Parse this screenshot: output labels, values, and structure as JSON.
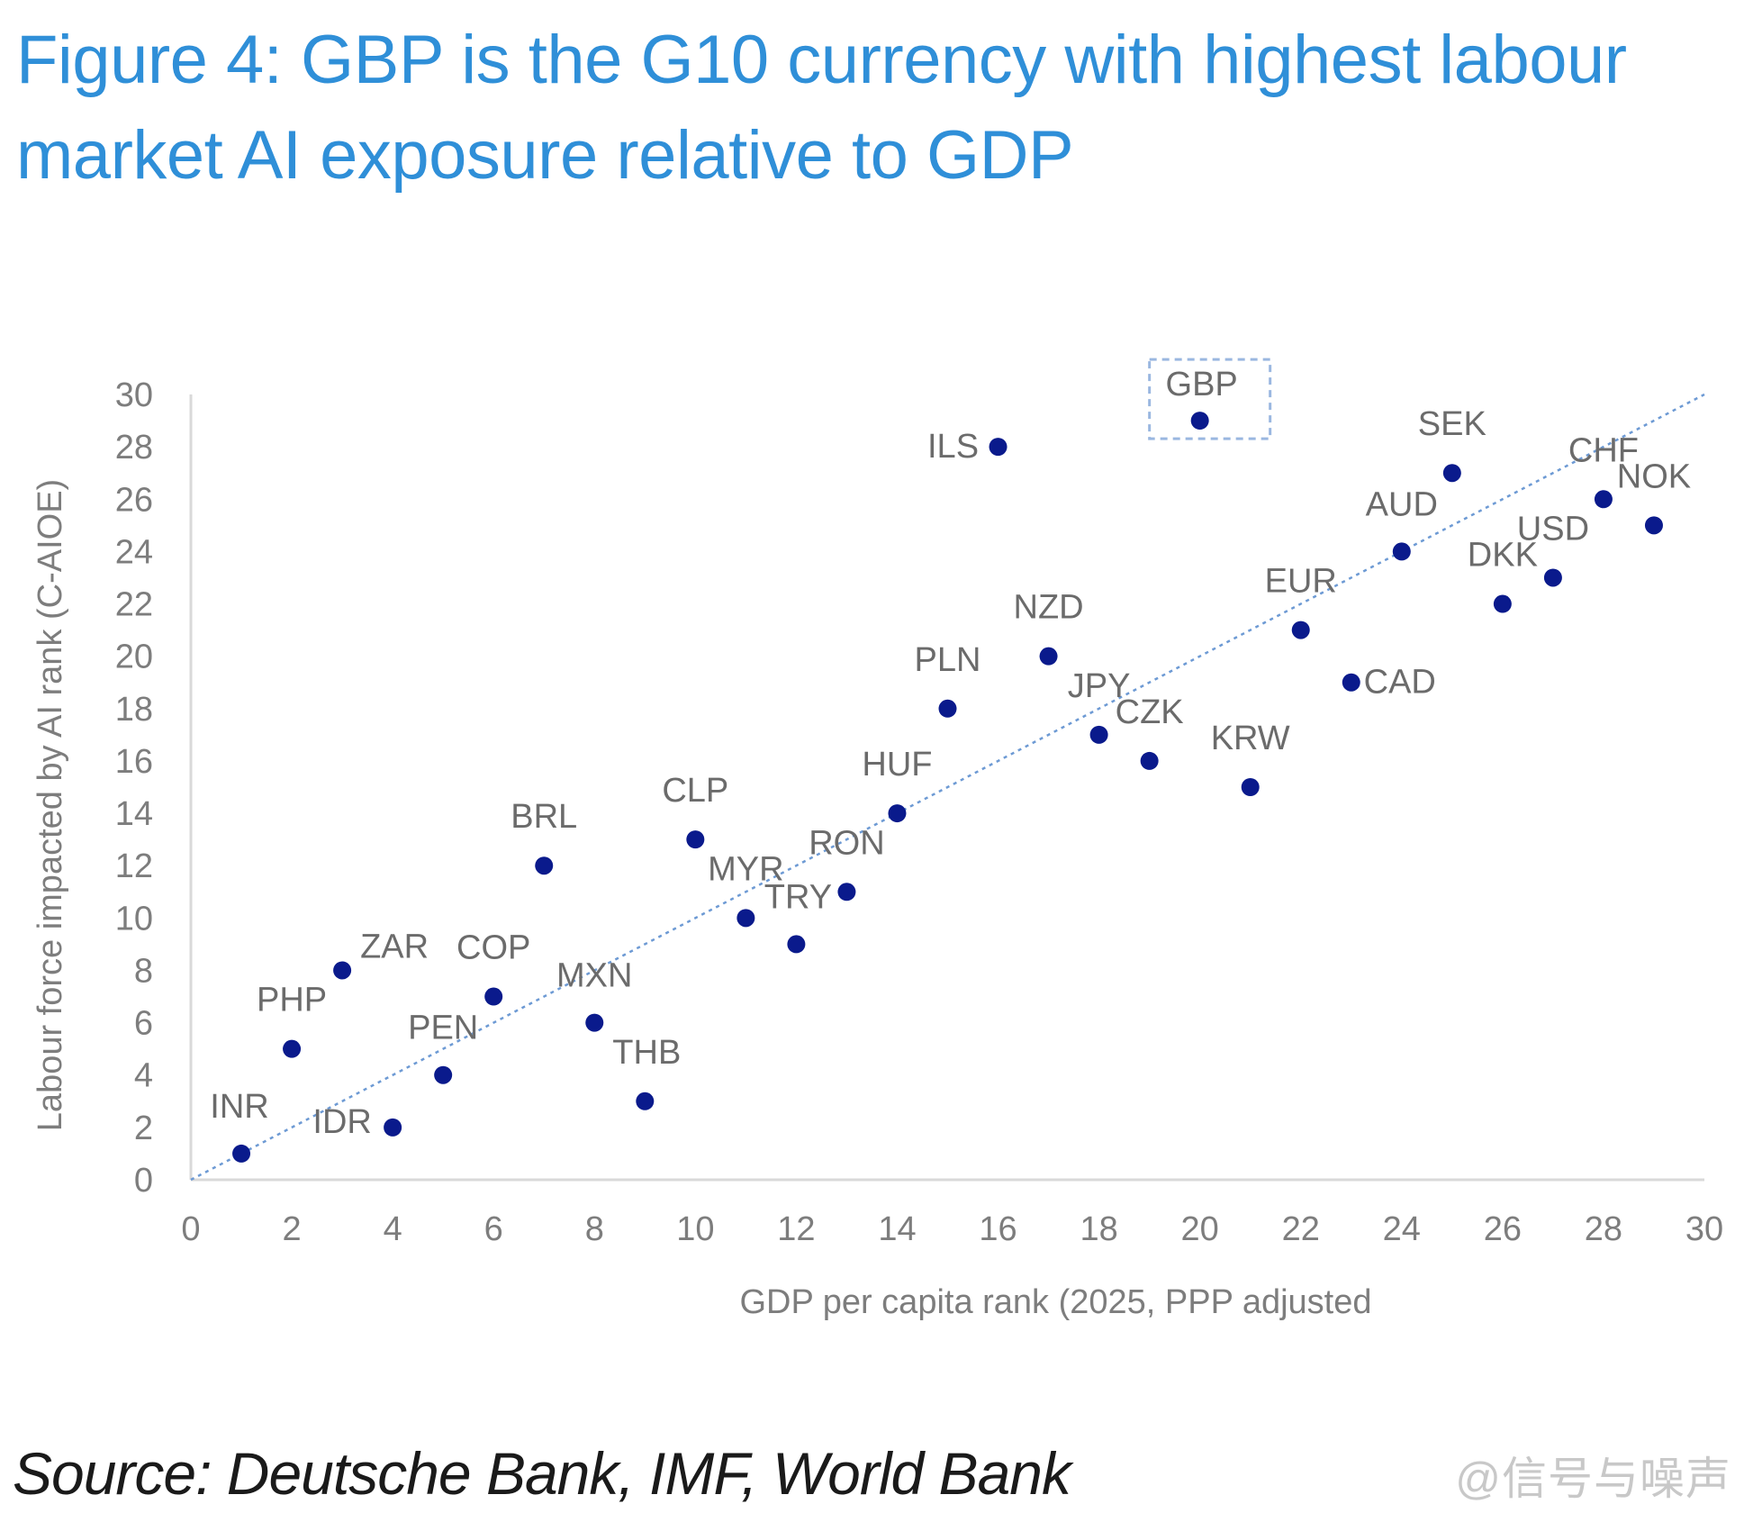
{
  "title": "Figure 4: GBP is the G10 currency with highest labour market AI exposure relative to GDP",
  "source": "Source: Deutsche Bank, IMF, World Bank",
  "watermark": "@信号与噪声",
  "colors": {
    "title": "#2f8fd8",
    "point": "#0a1a8c",
    "trendline": "#6d9ad4",
    "highlight_box": "#9ab7e0",
    "axis": "#d9d9d9",
    "text": "#7d7d7d"
  },
  "chart_data": {
    "type": "scatter",
    "title": "Figure 4: GBP is the G10 currency with highest labour market AI exposure relative to GDP",
    "xlabel": "GDP per capita rank (2025, PPP adjusted",
    "ylabel": "Labour force impacted by AI rank (C-AIOE)",
    "xlim": [
      0,
      30
    ],
    "ylim": [
      0,
      30
    ],
    "xticks": [
      0,
      2,
      4,
      6,
      8,
      10,
      12,
      14,
      16,
      18,
      20,
      22,
      24,
      26,
      28,
      30
    ],
    "yticks": [
      0,
      2,
      4,
      6,
      8,
      10,
      12,
      14,
      16,
      18,
      20,
      22,
      24,
      26,
      28,
      30
    ],
    "grid": false,
    "trendline": {
      "style": "dotted",
      "from": [
        0,
        0
      ],
      "to": [
        30,
        30
      ]
    },
    "highlight": "GBP",
    "points": [
      {
        "label": "INR",
        "x": 1,
        "y": 1
      },
      {
        "label": "PHP",
        "x": 2,
        "y": 5
      },
      {
        "label": "ZAR",
        "x": 3,
        "y": 8
      },
      {
        "label": "IDR",
        "x": 4,
        "y": 2
      },
      {
        "label": "PEN",
        "x": 5,
        "y": 4
      },
      {
        "label": "COP",
        "x": 6,
        "y": 7
      },
      {
        "label": "BRL",
        "x": 7,
        "y": 12
      },
      {
        "label": "MXN",
        "x": 8,
        "y": 6
      },
      {
        "label": "THB",
        "x": 9,
        "y": 3
      },
      {
        "label": "CLP",
        "x": 10,
        "y": 13
      },
      {
        "label": "MYR",
        "x": 11,
        "y": 10
      },
      {
        "label": "TRY",
        "x": 12,
        "y": 9
      },
      {
        "label": "RON",
        "x": 13,
        "y": 11
      },
      {
        "label": "HUF",
        "x": 14,
        "y": 14
      },
      {
        "label": "PLN",
        "x": 15,
        "y": 18
      },
      {
        "label": "ILS",
        "x": 16,
        "y": 28
      },
      {
        "label": "NZD",
        "x": 17,
        "y": 20
      },
      {
        "label": "JPY",
        "x": 18,
        "y": 17
      },
      {
        "label": "CZK",
        "x": 19,
        "y": 16
      },
      {
        "label": "GBP",
        "x": 20,
        "y": 29
      },
      {
        "label": "KRW",
        "x": 21,
        "y": 15
      },
      {
        "label": "EUR",
        "x": 22,
        "y": 21
      },
      {
        "label": "CAD",
        "x": 23,
        "y": 19
      },
      {
        "label": "AUD",
        "x": 24,
        "y": 24
      },
      {
        "label": "SEK",
        "x": 25,
        "y": 27
      },
      {
        "label": "DKK",
        "x": 26,
        "y": 22
      },
      {
        "label": "USD",
        "x": 27,
        "y": 23
      },
      {
        "label": "CHF",
        "x": 28,
        "y": 26
      },
      {
        "label": "NOK",
        "x": 29,
        "y": 25
      }
    ]
  }
}
